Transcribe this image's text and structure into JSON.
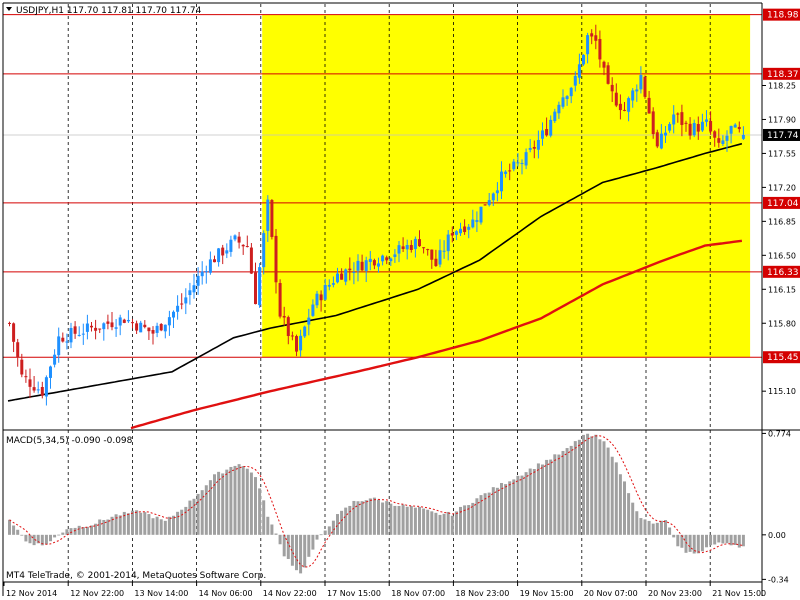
{
  "window": {
    "title": "USDJPY,H1  117.70 117.81 117.70 117.74",
    "copyright": "MT4 TeleTrade, © 2001-2014, MetaQuotes Software Corp."
  },
  "colors": {
    "background": "#ffffff",
    "zone_fill": "#ffff00",
    "bull_candle": "#1e90ff",
    "bear_candle": "#cd1f1f",
    "ma_fast": "#000000",
    "ma_slow": "#e01010",
    "level_line": "#d40000",
    "macd_bar": "#a0a0a0",
    "macd_signal": "#e01010"
  },
  "chart_data": [
    {
      "type": "candlestick",
      "symbol": "USDJPY",
      "timeframe": "H1",
      "ohlc_last": {
        "open": 117.7,
        "high": 117.81,
        "low": 117.7,
        "close": 117.74
      },
      "ylim": [
        114.7,
        119.1
      ],
      "y_ticks": [
        "115.10",
        "115.80",
        "116.15",
        "116.50",
        "116.85",
        "117.20",
        "117.55",
        "117.90",
        "118.25"
      ],
      "x_ticks": [
        "12 Nov 2014",
        "12 Nov 22:00",
        "13 Nov 14:00",
        "14 Nov 06:00",
        "14 Nov 22:00",
        "17 Nov 15:00",
        "18 Nov 07:00",
        "18 Nov 23:00",
        "19 Nov 15:00",
        "20 Nov 07:00",
        "20 Nov 23:00",
        "21 Nov 15:00"
      ],
      "levels": [
        {
          "value": 118.98,
          "label": "118.98"
        },
        {
          "value": 118.37,
          "label": "118.37"
        },
        {
          "value": 117.04,
          "label": "117.04"
        },
        {
          "value": 116.33,
          "label": "116.33"
        },
        {
          "value": 115.45,
          "label": "115.45"
        }
      ],
      "current_price": {
        "value": 117.74,
        "label": "117.74"
      },
      "zone": {
        "from_bar": 62,
        "to_bar": 181,
        "low": 115.45,
        "high": 118.98
      },
      "close_anchors": [
        [
          0,
          115.8
        ],
        [
          3,
          115.25
        ],
        [
          8,
          115.1
        ],
        [
          12,
          115.65
        ],
        [
          20,
          115.75
        ],
        [
          28,
          115.85
        ],
        [
          35,
          115.7
        ],
        [
          42,
          116.0
        ],
        [
          48,
          116.4
        ],
        [
          55,
          116.65
        ],
        [
          58,
          116.6
        ],
        [
          60,
          116.05
        ],
        [
          63,
          117.02
        ],
        [
          66,
          115.9
        ],
        [
          70,
          115.5
        ],
        [
          74,
          116.0
        ],
        [
          80,
          116.3
        ],
        [
          88,
          116.45
        ],
        [
          95,
          116.55
        ],
        [
          100,
          116.65
        ],
        [
          104,
          116.4
        ],
        [
          108,
          116.75
        ],
        [
          113,
          116.85
        ],
        [
          120,
          117.3
        ],
        [
          126,
          117.5
        ],
        [
          131,
          117.8
        ],
        [
          134,
          118.1
        ],
        [
          138,
          118.3
        ],
        [
          141,
          118.75
        ],
        [
          143,
          118.7
        ],
        [
          146,
          118.2
        ],
        [
          150,
          118.0
        ],
        [
          154,
          118.35
        ],
        [
          158,
          117.6
        ],
        [
          162,
          117.95
        ],
        [
          166,
          117.8
        ],
        [
          170,
          117.85
        ],
        [
          173,
          117.6
        ],
        [
          176,
          117.8
        ],
        [
          179,
          117.74
        ]
      ],
      "ma_fast_anchors": [
        [
          0,
          115.0
        ],
        [
          20,
          115.15
        ],
        [
          40,
          115.3
        ],
        [
          55,
          115.65
        ],
        [
          64,
          115.75
        ],
        [
          80,
          115.88
        ],
        [
          100,
          116.15
        ],
        [
          115,
          116.45
        ],
        [
          130,
          116.9
        ],
        [
          145,
          117.25
        ],
        [
          158,
          117.4
        ],
        [
          170,
          117.55
        ],
        [
          179,
          117.65
        ]
      ],
      "ma_slow_anchors": [
        [
          30,
          114.72
        ],
        [
          45,
          114.9
        ],
        [
          64,
          115.1
        ],
        [
          85,
          115.3
        ],
        [
          100,
          115.45
        ],
        [
          115,
          115.62
        ],
        [
          130,
          115.85
        ],
        [
          145,
          116.2
        ],
        [
          160,
          116.45
        ],
        [
          170,
          116.6
        ],
        [
          179,
          116.65
        ]
      ]
    },
    {
      "type": "macd",
      "title": "MACD(5,34,5) -0.090 -0.098",
      "params": [
        5,
        34,
        5
      ],
      "main": -0.09,
      "signal": -0.098,
      "ylim": [
        -0.36,
        0.8
      ],
      "y_ticks": [
        "0.774",
        "0.00",
        "-0.34"
      ],
      "hist_anchors": [
        [
          0,
          0.12
        ],
        [
          4,
          -0.05
        ],
        [
          8,
          -0.08
        ],
        [
          10,
          -0.05
        ],
        [
          14,
          0.05
        ],
        [
          20,
          0.08
        ],
        [
          26,
          0.15
        ],
        [
          32,
          0.18
        ],
        [
          38,
          0.1
        ],
        [
          44,
          0.25
        ],
        [
          50,
          0.45
        ],
        [
          56,
          0.55
        ],
        [
          60,
          0.45
        ],
        [
          63,
          0.15
        ],
        [
          67,
          -0.15
        ],
        [
          71,
          -0.3
        ],
        [
          75,
          -0.05
        ],
        [
          79,
          0.12
        ],
        [
          84,
          0.25
        ],
        [
          88,
          0.28
        ],
        [
          92,
          0.25
        ],
        [
          96,
          0.22
        ],
        [
          100,
          0.2
        ],
        [
          104,
          0.16
        ],
        [
          108,
          0.16
        ],
        [
          112,
          0.24
        ],
        [
          118,
          0.35
        ],
        [
          124,
          0.45
        ],
        [
          130,
          0.55
        ],
        [
          136,
          0.65
        ],
        [
          140,
          0.76
        ],
        [
          143,
          0.75
        ],
        [
          146,
          0.68
        ],
        [
          150,
          0.4
        ],
        [
          154,
          0.12
        ],
        [
          158,
          0.08
        ],
        [
          160,
          0.12
        ],
        [
          163,
          -0.1
        ],
        [
          167,
          -0.15
        ],
        [
          171,
          -0.08
        ],
        [
          175,
          -0.06
        ],
        [
          179,
          -0.09
        ]
      ]
    }
  ]
}
